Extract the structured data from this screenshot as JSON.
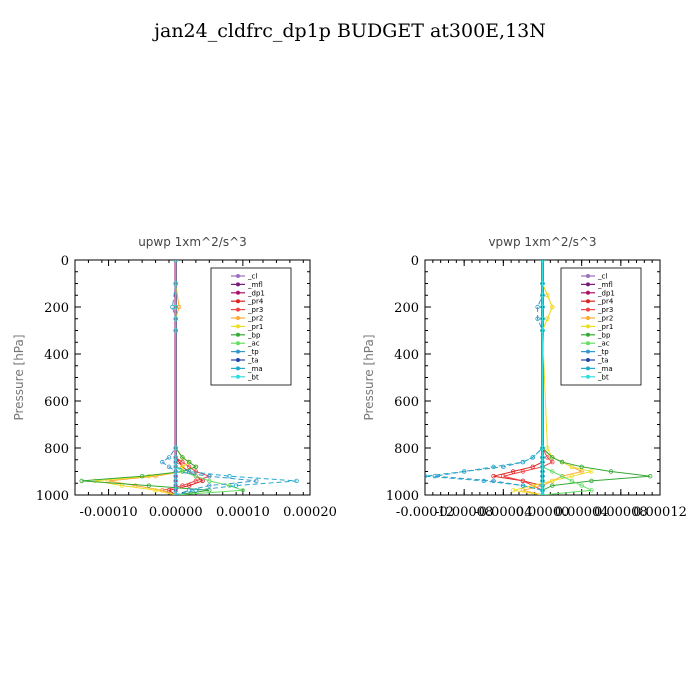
{
  "title": "jan24_cldfrc_dp1p  BUDGET at300E,13N",
  "legend": [
    {
      "label": "_cl",
      "color": "#9a6fc0"
    },
    {
      "label": "_mfl",
      "color": "#7a1a7a"
    },
    {
      "label": "_dp1",
      "color": "#aa1166"
    },
    {
      "label": "_pr4",
      "color": "#dd2222"
    },
    {
      "label": "_pr3",
      "color": "#ee4444"
    },
    {
      "label": "_pr2",
      "color": "#ffaa33"
    },
    {
      "label": "_pr1",
      "color": "#eedd22"
    },
    {
      "label": "_bp",
      "color": "#33aa33"
    },
    {
      "label": "_ac",
      "color": "#66dd66"
    },
    {
      "label": "_tp",
      "color": "#3399cc"
    },
    {
      "label": "_ta",
      "color": "#2244aa"
    },
    {
      "label": "_ma",
      "color": "#22aacc"
    },
    {
      "label": "_bt",
      "color": "#33dddd"
    }
  ],
  "chart_data": [
    {
      "type": "line",
      "title": "upwp   1xm^2/s^3",
      "ylabel": "Pressure [hPa]",
      "xlabel": "",
      "xlim": [
        -0.00015,
        0.0002
      ],
      "ylim": [
        1000,
        0
      ],
      "xticks": [
        "-0.00010",
        "0.00000",
        "0.00010",
        "0.00020"
      ],
      "xtick_values": [
        -0.0001,
        0,
        0.0001,
        0.0002
      ],
      "yticks": [
        0,
        200,
        400,
        600,
        800,
        1000
      ],
      "y": [
        0,
        100,
        200,
        250,
        300,
        800,
        840,
        860,
        880,
        900,
        920,
        940,
        960,
        980,
        1000
      ],
      "series": [
        {
          "name": "_cl",
          "x": [
            0,
            0,
            0,
            0,
            0,
            0,
            0,
            0,
            0,
            0,
            0,
            0,
            0,
            0,
            0
          ]
        },
        {
          "name": "_mfl",
          "x": [
            0,
            0,
            0,
            0,
            0,
            0,
            0,
            0,
            0,
            0,
            0,
            0,
            0,
            0,
            0
          ]
        },
        {
          "name": "_dp1",
          "x": [
            0,
            0,
            0,
            0,
            0,
            0,
            0,
            0,
            0,
            0,
            0,
            0,
            0,
            0,
            0
          ]
        },
        {
          "name": "_pr4",
          "x": [
            0,
            0,
            0,
            0,
            0,
            0,
            0,
            5e-06,
            1e-05,
            2e-05,
            3e-05,
            4e-05,
            2e-05,
            -1e-05,
            0
          ]
        },
        {
          "name": "_pr3",
          "x": [
            0,
            0,
            0,
            0,
            0,
            0,
            0,
            1e-05,
            2e-05,
            3e-05,
            5e-05,
            3e-05,
            1e-05,
            -2e-05,
            0
          ]
        },
        {
          "name": "_pr2",
          "x": [
            0,
            0,
            5e-06,
            0,
            0,
            0,
            1e-05,
            2e-05,
            3e-05,
            1e-05,
            -3e-05,
            -0.0001,
            -6e-05,
            -2e-05,
            0
          ]
        },
        {
          "name": "_pr1",
          "x": [
            0,
            0,
            0,
            0,
            0,
            0,
            1e-05,
            2e-05,
            1e-05,
            1e-05,
            -4e-05,
            -0.00012,
            -8e-05,
            -3e-05,
            0
          ]
        },
        {
          "name": "_bp",
          "x": [
            0,
            0,
            0,
            0,
            0,
            0,
            1e-05,
            2e-05,
            3e-05,
            1e-05,
            -5e-05,
            -0.00014,
            -4e-05,
            5e-05,
            0
          ]
        },
        {
          "name": "_ac",
          "x": [
            0,
            0,
            0,
            0,
            0,
            0,
            0,
            0,
            0,
            1e-05,
            3e-05,
            5e-05,
            8e-05,
            0.0001,
            0
          ]
        },
        {
          "name": "_tp",
          "x": [
            0,
            0,
            -5e-06,
            0,
            0,
            0,
            -1e-05,
            -2e-05,
            -1e-05,
            0,
            5e-05,
            0.00012,
            5e-05,
            2e-05,
            0
          ]
        },
        {
          "name": "_ta",
          "x": [
            0,
            0,
            0,
            0,
            0,
            0,
            0,
            0,
            0,
            0,
            0,
            0,
            0,
            0,
            0
          ]
        },
        {
          "name": "_ma",
          "x": [
            0,
            0,
            0,
            0,
            0,
            0,
            0,
            0,
            0,
            2e-05,
            8e-05,
            0.00018,
            9e-05,
            3e-05,
            0
          ]
        },
        {
          "name": "_bt",
          "x": [
            0,
            0,
            0,
            0,
            0,
            0,
            0,
            0,
            0,
            0,
            0,
            0,
            0,
            0,
            0
          ]
        }
      ]
    },
    {
      "type": "line",
      "title": "vpwp   1xm^2/s^3",
      "ylabel": "Pressure [hPa]",
      "xlabel": "",
      "xlim": [
        -0.00012,
        0.00012
      ],
      "ylim": [
        1000,
        0
      ],
      "xticks": [
        "-0.00012",
        "-0.00008",
        "-0.00004",
        "0.00000",
        "0.00004",
        "0.00008",
        "0.00012"
      ],
      "xtick_values": [
        -0.00012,
        -8e-05,
        -4e-05,
        0,
        4e-05,
        8e-05,
        0.00012
      ],
      "yticks": [
        0,
        200,
        400,
        600,
        800,
        1000
      ],
      "y": [
        0,
        100,
        150,
        200,
        250,
        300,
        800,
        840,
        860,
        880,
        900,
        920,
        940,
        960,
        980,
        1000
      ],
      "series": [
        {
          "name": "_cl",
          "x": [
            0,
            0,
            0,
            0,
            0,
            0,
            0,
            0,
            0,
            0,
            0,
            0,
            0,
            0,
            0,
            0
          ]
        },
        {
          "name": "_mfl",
          "x": [
            0,
            0,
            0,
            0,
            0,
            0,
            0,
            0,
            0,
            0,
            0,
            0,
            0,
            0,
            0,
            0
          ]
        },
        {
          "name": "_dp1",
          "x": [
            0,
            0,
            0,
            0,
            0,
            0,
            0,
            0,
            0,
            0,
            0,
            0,
            0,
            0,
            0,
            0
          ]
        },
        {
          "name": "_pr4",
          "x": [
            0,
            0,
            0,
            0,
            0,
            0,
            0,
            0,
            0,
            -1e-05,
            -3e-05,
            -5e-05,
            -2e-05,
            0,
            0,
            0
          ]
        },
        {
          "name": "_pr3",
          "x": [
            0,
            0,
            0,
            0,
            0,
            0,
            0,
            5e-06,
            1e-05,
            0,
            -2e-05,
            -4e-05,
            -2e-05,
            -1e-05,
            0,
            0
          ]
        },
        {
          "name": "_pr2",
          "x": [
            0,
            0,
            5e-06,
            1e-05,
            5e-06,
            0,
            0,
            1e-05,
            2e-05,
            3e-05,
            4e-05,
            2e-05,
            1e-05,
            0,
            -2e-05,
            0
          ]
        },
        {
          "name": "_pr1",
          "x": [
            0,
            0,
            5e-06,
            1e-05,
            5e-06,
            0,
            5e-06,
            1e-05,
            2e-05,
            3e-05,
            5e-05,
            3e-05,
            1e-05,
            -1e-05,
            -3e-05,
            0
          ]
        },
        {
          "name": "_bp",
          "x": [
            0,
            0,
            0,
            0,
            0,
            0,
            0,
            1e-05,
            2e-05,
            4e-05,
            7e-05,
            0.00011,
            5e-05,
            1e-05,
            0,
            0
          ]
        },
        {
          "name": "_ac",
          "x": [
            0,
            0,
            0,
            0,
            0,
            0,
            0,
            0,
            0,
            0,
            1e-05,
            2e-05,
            3e-05,
            4e-05,
            5e-05,
            0
          ]
        },
        {
          "name": "_tp",
          "x": [
            0,
            0,
            0,
            -5e-06,
            -5e-06,
            0,
            0,
            -1e-05,
            -2e-05,
            -4e-05,
            -8e-05,
            -0.00011,
            -5e-05,
            -2e-05,
            0,
            0
          ]
        },
        {
          "name": "_ta",
          "x": [
            0,
            0,
            0,
            0,
            0,
            0,
            0,
            0,
            0,
            0,
            0,
            0,
            0,
            0,
            0,
            0
          ]
        },
        {
          "name": "_ma",
          "x": [
            0,
            0,
            0,
            0,
            0,
            0,
            0,
            -1e-05,
            -2e-05,
            -5e-05,
            -8e-05,
            -0.00012,
            -6e-05,
            -2e-05,
            0,
            0
          ]
        },
        {
          "name": "_bt",
          "x": [
            0,
            0,
            0,
            0,
            0,
            0,
            0,
            0,
            0,
            0,
            0,
            0,
            0,
            0,
            0,
            0
          ]
        }
      ]
    }
  ]
}
